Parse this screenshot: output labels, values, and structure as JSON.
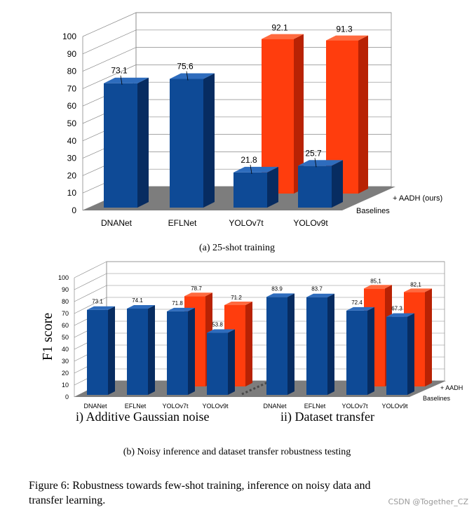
{
  "colors": {
    "baseline": "#0e4a96",
    "baseline_side": "#072c61",
    "baseline_top": "#2e6cbd",
    "aadh": "#ff3d0d",
    "aadh_side": "#b82204",
    "aadh_top": "#ff6a3f",
    "floor": "#7d7d7d",
    "grid": "#888888"
  },
  "chart_data": [
    {
      "type": "bar",
      "id": "a",
      "categories": [
        "DNANet",
        "EFLNet",
        "YOLOv7t",
        "YOLOv9t"
      ],
      "series": [
        {
          "name": "Baselines",
          "values": [
            73.1,
            75.6,
            21.8,
            25.7
          ],
          "labels": [
            "73.1",
            "75.6",
            "21.8",
            "25.7"
          ]
        },
        {
          "name": "+ AADH (ours)",
          "values": [
            null,
            null,
            92.1,
            91.3
          ],
          "labels": [
            "",
            "",
            "92.1",
            "91.3"
          ]
        }
      ],
      "yticks": [
        "0",
        "10",
        "20",
        "30",
        "40",
        "50",
        "60",
        "70",
        "80",
        "90",
        "100"
      ],
      "ylim": [
        0,
        100
      ],
      "caption": "(a) 25-shot training"
    },
    {
      "type": "bar",
      "id": "b",
      "ylabel": "F1 score",
      "groups": [
        {
          "title": "i) Additive Gaussian noise",
          "categories": [
            "DNANet",
            "EFLNet",
            "YOLOv7t",
            "YOLOv9t"
          ],
          "baselines": [
            73.1,
            74.1,
            71.8,
            53.8
          ],
          "baseline_labels": [
            "73.1",
            "74.1",
            "71.8",
            "53.8"
          ],
          "aadh": [
            null,
            null,
            78.7,
            71.2
          ],
          "aadh_labels": [
            "",
            "",
            "78.7",
            "71.2"
          ]
        },
        {
          "title": "ii) Dataset transfer",
          "categories": [
            "DNANet",
            "EFLNet",
            "YOLOv7t",
            "YOLOv9t"
          ],
          "baselines": [
            83.9,
            83.7,
            72.4,
            67.3
          ],
          "baseline_labels": [
            "83.9",
            "83.7",
            "72.4",
            "67.3"
          ],
          "aadh": [
            null,
            null,
            85.1,
            82.1
          ],
          "aadh_labels": [
            "",
            "",
            "85,1",
            "82,1"
          ]
        }
      ],
      "legend": [
        "+ AADH",
        "Baselines"
      ],
      "yticks": [
        "0",
        "10",
        "20",
        "30",
        "40",
        "50",
        "60",
        "70",
        "80",
        "90",
        "100"
      ],
      "ylim": [
        0,
        100
      ],
      "caption": "(b) Noisy inference and dataset transfer robustness testing"
    }
  ],
  "figure_caption_line1": "Figure 6: Robustness towards few-shot training, inference on noisy data and",
  "figure_caption_line2": "transfer learning.",
  "watermark": "CSDN @Together_CZ"
}
